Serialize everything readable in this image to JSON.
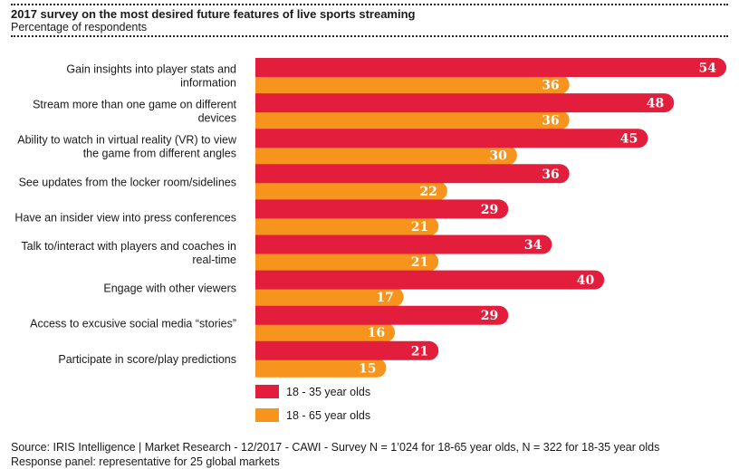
{
  "title": "2017 survey on the most desired future features of live sports streaming",
  "subtitle": "Percentage of respondents",
  "colors": {
    "series1": "#e31e3c",
    "series2": "#f7941d"
  },
  "chart_data": {
    "type": "bar",
    "orientation": "horizontal",
    "categories": [
      [
        "Gain insights into player stats and",
        "information"
      ],
      [
        "Stream more than one game on different",
        "devices"
      ],
      [
        "Ability to watch in virtual reality (VR) to view",
        "the game from different angles"
      ],
      [
        "See updates from the locker room/sidelines"
      ],
      [
        "Have an insider view into press conferences"
      ],
      [
        "Talk to/interact with players and coaches in",
        "real-time"
      ],
      [
        "Engage with other viewers"
      ],
      [
        "Access to excusive social media “stories”"
      ],
      [
        "Participate in score/play predictions"
      ]
    ],
    "series": [
      {
        "name": "18 - 35 year olds",
        "values": [
          54,
          48,
          45,
          36,
          29,
          34,
          40,
          29,
          21
        ]
      },
      {
        "name": "18 - 65 year olds",
        "values": [
          36,
          36,
          30,
          22,
          21,
          21,
          17,
          16,
          15
        ]
      }
    ],
    "legend_position": "bottom"
  },
  "source": {
    "line1": "Source: IRIS Intelligence | Market Research - 12/2017 - CAWI - Survey N = 1’024 for 18-65 year olds, N = 322 for 18-35 year olds",
    "line2": "Response panel: representative for 25 global markets"
  }
}
